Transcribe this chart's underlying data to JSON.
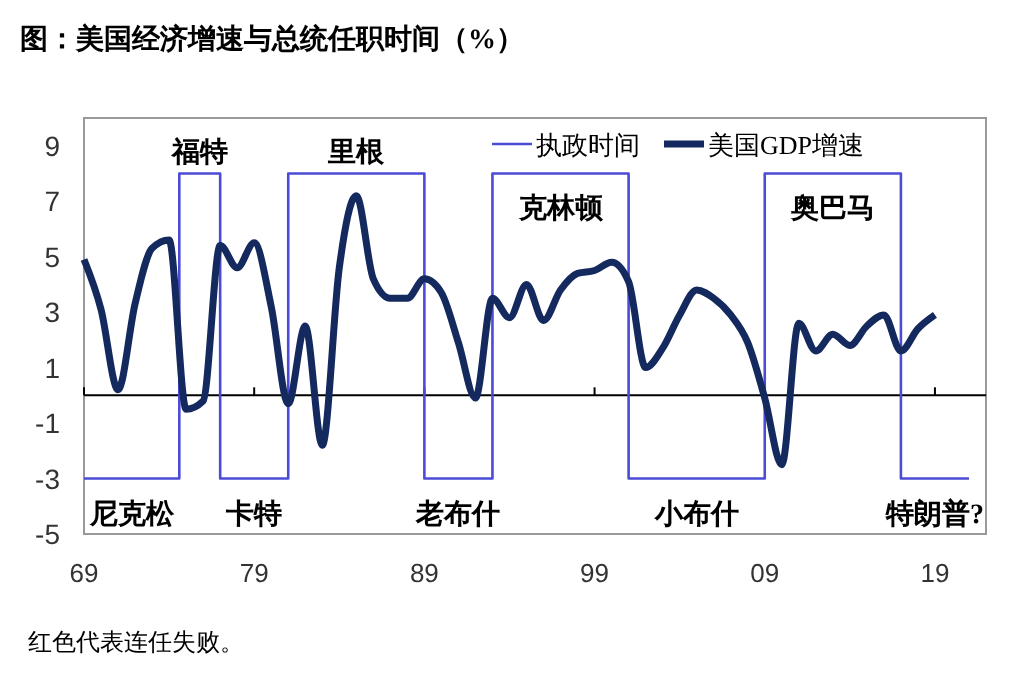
{
  "chart_data": {
    "type": "line",
    "title": "图：美国经济增速与总统任职时间（%）",
    "xlim": [
      1969,
      2022
    ],
    "xticks": [
      {
        "value": 1969,
        "label": "69"
      },
      {
        "value": 1979,
        "label": "79"
      },
      {
        "value": 1989,
        "label": "89"
      },
      {
        "value": 1999,
        "label": "99"
      },
      {
        "value": 2009,
        "label": "09"
      },
      {
        "value": 2019,
        "label": "19"
      }
    ],
    "ylim": [
      -5,
      10
    ],
    "yticks": [
      -5,
      -3,
      -1,
      1,
      3,
      5,
      7,
      9
    ],
    "grid": false,
    "legend": "top right",
    "series": [
      {
        "name": "执政时间",
        "type": "step",
        "color": "#4b4bd6",
        "x": [
          1969,
          1974.6,
          1977,
          1981,
          1989,
          1993,
          2001,
          2009,
          2017,
          2021
        ],
        "values": [
          -3,
          8,
          -3,
          8,
          -3,
          8,
          -3,
          8,
          -3,
          -3
        ]
      },
      {
        "name": "美国GDP增速",
        "type": "line",
        "color": "#14295e",
        "x": [
          1969,
          1970,
          1971,
          1972,
          1973,
          1974,
          1975,
          1976,
          1977,
          1978,
          1979,
          1980,
          1981,
          1982,
          1983,
          1984,
          1985,
          1986,
          1987,
          1988,
          1989,
          1990,
          1991,
          1992,
          1993,
          1994,
          1995,
          1996,
          1997,
          1998,
          1999,
          2000,
          2001,
          2002,
          2003,
          2004,
          2005,
          2006,
          2007,
          2008,
          2009,
          2010,
          2011,
          2012,
          2013,
          2014,
          2015,
          2016,
          2017,
          2018,
          2019
        ],
        "values": [
          4.9,
          3.1,
          0.2,
          3.3,
          5.3,
          5.6,
          -0.5,
          -0.2,
          5.4,
          4.6,
          5.5,
          3.2,
          -0.3,
          2.5,
          -1.8,
          4.6,
          7.2,
          4.2,
          3.5,
          3.5,
          4.2,
          3.7,
          1.9,
          -0.1,
          3.5,
          2.8,
          4.0,
          2.7,
          3.8,
          4.4,
          4.5,
          4.8,
          4.1,
          1.0,
          1.7,
          2.9,
          3.8,
          3.5,
          2.9,
          1.9,
          -0.1,
          -2.5,
          2.6,
          1.6,
          2.2,
          1.8,
          2.5,
          2.9,
          1.6,
          2.4,
          2.9
        ]
      }
    ],
    "ref_lines": [
      {
        "axis": "y",
        "value": 0,
        "color": "#000000"
      }
    ],
    "annotations": [
      {
        "text": "尼克松",
        "x": 1969,
        "y": -3
      },
      {
        "text": "福特",
        "x": 1974.6,
        "y": 8
      },
      {
        "text": "卡特",
        "x": 1977,
        "y": -3
      },
      {
        "text": "里根",
        "x": 1981,
        "y": 8
      },
      {
        "text": "老布什",
        "x": 1989,
        "y": -3
      },
      {
        "text": "克林顿",
        "x": 1993,
        "y": 8
      },
      {
        "text": "小布什",
        "x": 2001,
        "y": -3
      },
      {
        "text": "奥巴马",
        "x": 2009,
        "y": 8
      },
      {
        "text": "特朗普?",
        "x": 2017,
        "y": -3
      },
      "红色代表连任失败。"
    ]
  }
}
